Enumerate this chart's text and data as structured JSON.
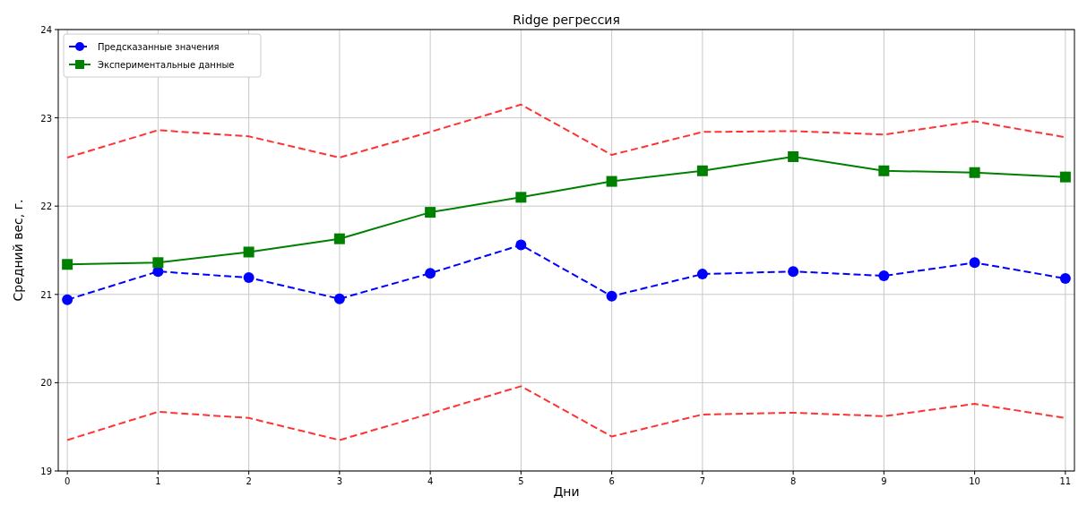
{
  "chart_data": {
    "type": "line",
    "title": "Ridge регрессия",
    "xlabel": "Дни",
    "ylabel": "Средний вес, г.",
    "x": [
      0,
      1,
      2,
      3,
      4,
      5,
      6,
      7,
      8,
      9,
      10,
      11
    ],
    "series": [
      {
        "name": "Предсказанные значения",
        "color": "#0000ff",
        "marker": "circle",
        "line_style": "dashed",
        "values": [
          20.94,
          21.26,
          21.19,
          20.95,
          21.24,
          21.56,
          20.98,
          21.23,
          21.26,
          21.21,
          21.36,
          21.18
        ]
      },
      {
        "name": "Экспериментальные данные",
        "color": "#008000",
        "marker": "square",
        "line_style": "solid",
        "values": [
          21.34,
          21.36,
          21.48,
          21.63,
          21.93,
          22.1,
          22.28,
          22.4,
          22.56,
          22.4,
          22.38,
          22.33
        ]
      },
      {
        "color": "#ff3333",
        "marker": "none",
        "line_style": "dashed",
        "values": [
          22.55,
          22.86,
          22.79,
          22.55,
          22.84,
          23.15,
          22.58,
          22.84,
          22.85,
          22.81,
          22.96,
          22.78
        ]
      },
      {
        "color": "#ff3333",
        "marker": "none",
        "line_style": "dashed",
        "values": [
          19.35,
          19.67,
          19.6,
          19.35,
          19.65,
          19.96,
          19.39,
          19.64,
          19.66,
          19.62,
          19.76,
          19.6
        ]
      }
    ],
    "xlim": [
      -0.1,
      11.1
    ],
    "xticks": [
      0,
      1,
      2,
      3,
      4,
      5,
      6,
      7,
      8,
      9,
      10,
      11
    ],
    "ylim": [
      19,
      24
    ],
    "yticks": [
      19,
      20,
      21,
      22,
      23,
      24
    ],
    "grid": true,
    "legend": "top left"
  }
}
